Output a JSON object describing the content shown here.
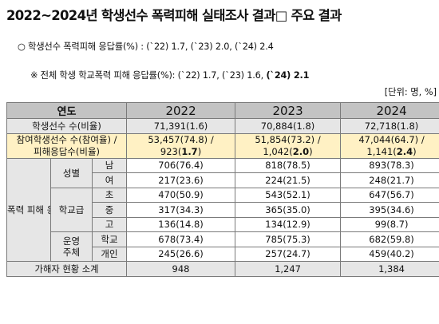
{
  "title": "2022~2024년 학생선수 폭력피해 실태조사 결과□ 주요 결과",
  "bullet1": "○ 학생선수 폭력피해 응답률(%) : (`22) 1.7, (`23) 2.0, (`24) 2.4",
  "bullet2": {
    "prefix": "※ 전체 학생 학교폭력 피해 응답률(%): (`22) 1.7, (`23) 1.6, ",
    "bold": "(`24) 2.1"
  },
  "unit": "[단위: 명, %]",
  "table": {
    "header": {
      "label": "연도",
      "years": [
        "2022",
        "2023",
        "2024"
      ]
    },
    "student_count": {
      "label": "학생선수 수(비율)",
      "values": [
        "71,391(1.6)",
        "70,884(1.8)",
        "72,718(1.8)"
      ]
    },
    "participation": {
      "label_line1": "참여학생선수 수(참여율) /",
      "label_line2": "피해응답수(비율)",
      "years": [
        {
          "line1": "53,457(74.8) /",
          "line2a": "923(",
          "line2b": "1.7",
          "line2c": ")"
        },
        {
          "line1": "51,854(73.2) /",
          "line2a": "1,042(",
          "line2b": "2.0",
          "line2c": ")"
        },
        {
          "line1": "47,044(64.7) /",
          "line2a": "1,141(",
          "line2b": "2.4",
          "line2c": ")"
        }
      ]
    },
    "victim_group_label": "폭력 피해 응답자 현황",
    "gender": {
      "label": "성별",
      "rows": [
        {
          "sub": "남",
          "values": [
            "706(76.4)",
            "818(78.5)",
            "893(78.3)"
          ]
        },
        {
          "sub": "여",
          "values": [
            "217(23.6)",
            "224(21.5)",
            "248(21.7)"
          ]
        }
      ]
    },
    "school_level": {
      "label": "학교급",
      "rows": [
        {
          "sub": "초",
          "values": [
            "470(50.9)",
            "543(52.1)",
            "647(56.7)"
          ]
        },
        {
          "sub": "중",
          "values": [
            "317(34.3)",
            "365(35.0)",
            "395(34.6)"
          ]
        },
        {
          "sub": "고",
          "values": [
            "136(14.8)",
            "134(12.9)",
            "99(8.7)"
          ]
        }
      ]
    },
    "operator": {
      "label_line1": "운영",
      "label_line2": "주체",
      "rows": [
        {
          "sub": "학교",
          "values": [
            "678(73.4)",
            "785(75.3)",
            "682(59.8)"
          ]
        },
        {
          "sub": "개인",
          "values": [
            "245(26.6)",
            "257(24.7)",
            "459(40.2)"
          ]
        }
      ]
    },
    "perpetrator_total": {
      "label": "가해자 현황 소계",
      "values": [
        "948",
        "1,247",
        "1,384"
      ]
    }
  }
}
